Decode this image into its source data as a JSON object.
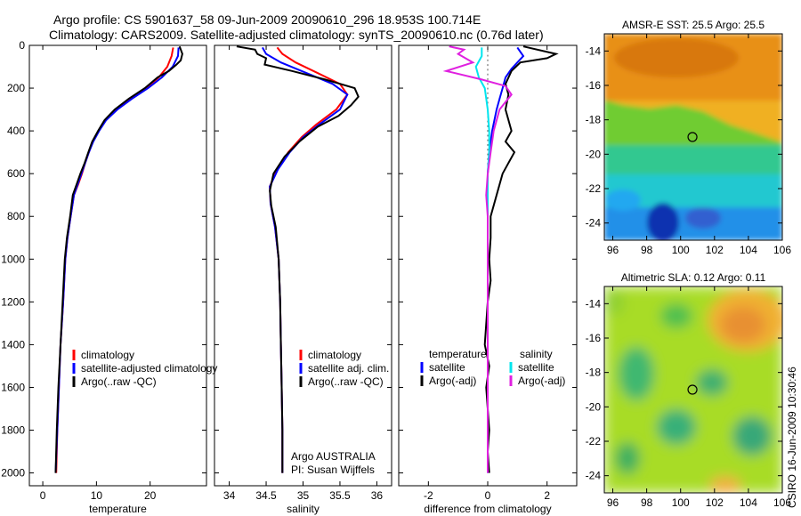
{
  "header": {
    "line1": "Argo profile: CS 5901637_58 09-Jun-2009 20090610_296 18.953S 100.714E",
    "line2": "Climatology: CARS2009. Satellite-adjusted climatology: synTS_20090610.nc (0.76d later)"
  },
  "side_stamp": "CSIRO 16-Jun-2009 10:30:46",
  "colors": {
    "climatology": "#ff0000",
    "satellite": "#0000ff",
    "argo": "#000000",
    "sal_satellite": "#00e5ee",
    "sal_argo": "#e020e0"
  },
  "chart_data": [
    {
      "type": "line",
      "name": "temperature-panel",
      "xlabel": "temperature",
      "xlim": [
        -2.5,
        30.5
      ],
      "ylim": [
        0,
        2060
      ],
      "xticks": [
        0,
        10,
        20
      ],
      "yticks": [
        0,
        200,
        400,
        600,
        800,
        1000,
        1200,
        1400,
        1600,
        1800,
        2000
      ],
      "legend": [
        "climatology",
        "satellite-adjusted climatology",
        "Argo(..raw -QC)"
      ],
      "series": [
        {
          "name": "climatology",
          "color": "#ff0000",
          "points": [
            [
              24.3,
              10
            ],
            [
              24.0,
              50
            ],
            [
              23.2,
              100
            ],
            [
              21.6,
              150
            ],
            [
              19.2,
              200
            ],
            [
              16.2,
              250
            ],
            [
              13.6,
              300
            ],
            [
              11.6,
              350
            ],
            [
              10.4,
              400
            ],
            [
              9.3,
              450
            ],
            [
              8.6,
              500
            ],
            [
              7.9,
              550
            ],
            [
              7.3,
              600
            ],
            [
              6.6,
              650
            ],
            [
              5.8,
              700
            ],
            [
              5.2,
              800
            ],
            [
              4.6,
              900
            ],
            [
              4.2,
              1000
            ],
            [
              3.8,
              1200
            ],
            [
              3.3,
              1400
            ],
            [
              3.0,
              1600
            ],
            [
              2.7,
              1800
            ],
            [
              2.5,
              2000
            ]
          ]
        },
        {
          "name": "satellite-adjusted climatology",
          "color": "#0000ff",
          "points": [
            [
              25.3,
              10
            ],
            [
              25.2,
              50
            ],
            [
              24.2,
              100
            ],
            [
              22.2,
              150
            ],
            [
              19.6,
              200
            ],
            [
              16.6,
              250
            ],
            [
              13.9,
              300
            ],
            [
              11.8,
              350
            ],
            [
              10.5,
              400
            ],
            [
              9.4,
              450
            ],
            [
              8.6,
              500
            ],
            [
              7.9,
              550
            ],
            [
              7.2,
              600
            ],
            [
              6.5,
              650
            ],
            [
              5.8,
              700
            ],
            [
              5.2,
              800
            ],
            [
              4.6,
              900
            ],
            [
              4.2,
              1000
            ],
            [
              3.8,
              1200
            ],
            [
              3.3,
              1400
            ],
            [
              3.0,
              1600
            ],
            [
              2.7,
              1800
            ],
            [
              2.4,
              2000
            ]
          ]
        },
        {
          "name": "Argo(..raw -QC)",
          "color": "#000000",
          "points": [
            [
              25.5,
              5
            ],
            [
              26.0,
              40
            ],
            [
              25.7,
              70
            ],
            [
              24.9,
              90
            ],
            [
              23.5,
              120
            ],
            [
              21.4,
              150
            ],
            [
              19.0,
              200
            ],
            [
              16.0,
              250
            ],
            [
              13.4,
              300
            ],
            [
              11.5,
              350
            ],
            [
              10.3,
              400
            ],
            [
              9.2,
              450
            ],
            [
              8.5,
              500
            ],
            [
              7.8,
              550
            ],
            [
              7.0,
              600
            ],
            [
              6.3,
              650
            ],
            [
              5.6,
              700
            ],
            [
              5.1,
              800
            ],
            [
              4.5,
              900
            ],
            [
              4.1,
              1000
            ],
            [
              3.7,
              1200
            ],
            [
              3.3,
              1400
            ],
            [
              2.9,
              1600
            ],
            [
              2.6,
              1800
            ],
            [
              2.4,
              2000
            ]
          ]
        }
      ]
    },
    {
      "type": "line",
      "name": "salinity-panel",
      "xlabel": "salinity",
      "xlim": [
        33.8,
        36.2
      ],
      "ylim": [
        0,
        2060
      ],
      "xticks": [
        34,
        34.5,
        35,
        35.5,
        36
      ],
      "legend": [
        "climatology",
        "satellite adj. clim.",
        "Argo(..raw -QC)"
      ],
      "annotations": [
        "Argo AUSTRALIA",
        "PI: Susan Wijffels"
      ],
      "series": [
        {
          "name": "climatology",
          "color": "#ff0000",
          "points": [
            [
              34.65,
              10
            ],
            [
              34.72,
              40
            ],
            [
              34.9,
              80
            ],
            [
              35.2,
              130
            ],
            [
              35.5,
              180
            ],
            [
              35.6,
              230
            ],
            [
              35.45,
              300
            ],
            [
              35.18,
              370
            ],
            [
              34.98,
              430
            ],
            [
              34.8,
              500
            ],
            [
              34.65,
              580
            ],
            [
              34.55,
              660
            ],
            [
              34.56,
              740
            ],
            [
              34.62,
              850
            ],
            [
              34.67,
              1000
            ],
            [
              34.69,
              1200
            ],
            [
              34.7,
              1400
            ],
            [
              34.71,
              1600
            ],
            [
              34.72,
              1800
            ],
            [
              34.72,
              2000
            ]
          ]
        },
        {
          "name": "satellite adj. clim.",
          "color": "#0000ff",
          "points": [
            [
              34.45,
              10
            ],
            [
              34.5,
              40
            ],
            [
              34.7,
              80
            ],
            [
              35.05,
              130
            ],
            [
              35.4,
              180
            ],
            [
              35.6,
              230
            ],
            [
              35.5,
              300
            ],
            [
              35.22,
              370
            ],
            [
              35.0,
              430
            ],
            [
              34.82,
              500
            ],
            [
              34.66,
              580
            ],
            [
              34.55,
              660
            ],
            [
              34.56,
              740
            ],
            [
              34.62,
              850
            ],
            [
              34.67,
              1000
            ],
            [
              34.69,
              1200
            ],
            [
              34.7,
              1400
            ],
            [
              34.71,
              1600
            ],
            [
              34.72,
              1800
            ],
            [
              34.72,
              2000
            ]
          ]
        },
        {
          "name": "Argo(..raw -QC)",
          "color": "#000000",
          "points": [
            [
              34.1,
              5
            ],
            [
              34.35,
              20
            ],
            [
              34.38,
              40
            ],
            [
              34.5,
              60
            ],
            [
              34.48,
              90
            ],
            [
              34.85,
              120
            ],
            [
              35.3,
              160
            ],
            [
              35.7,
              200
            ],
            [
              35.75,
              240
            ],
            [
              35.65,
              280
            ],
            [
              35.48,
              330
            ],
            [
              35.2,
              380
            ],
            [
              34.95,
              450
            ],
            [
              34.75,
              520
            ],
            [
              34.6,
              600
            ],
            [
              34.55,
              680
            ],
            [
              34.57,
              750
            ],
            [
              34.63,
              850
            ],
            [
              34.67,
              1000
            ],
            [
              34.69,
              1200
            ],
            [
              34.7,
              1400
            ],
            [
              34.71,
              1600
            ],
            [
              34.72,
              1800
            ],
            [
              34.72,
              2000
            ]
          ]
        }
      ]
    },
    {
      "type": "line",
      "name": "difference-panel",
      "xlabel": "difference from climatology",
      "xlim": [
        -3,
        3
      ],
      "ylim": [
        0,
        2060
      ],
      "xticks": [
        -2,
        0,
        2
      ],
      "legend_headers": [
        "temperature",
        "salinity"
      ],
      "legend": [
        "satellite",
        "Argo(-adj)",
        "satellite",
        "Argo(-adj)"
      ],
      "series": [
        {
          "name": "temperature satellite",
          "color": "#0000ff",
          "points": [
            [
              1.0,
              10
            ],
            [
              1.2,
              50
            ],
            [
              1.0,
              80
            ],
            [
              0.8,
              110
            ],
            [
              0.6,
              150
            ],
            [
              0.5,
              200
            ],
            [
              0.4,
              250
            ],
            [
              0.3,
              300
            ],
            [
              0.15,
              400
            ],
            [
              0.05,
              500
            ],
            [
              0,
              600
            ],
            [
              0,
              800
            ],
            [
              0,
              1000
            ],
            [
              0,
              1200
            ],
            [
              0,
              1400
            ],
            [
              0,
              1600
            ],
            [
              0,
              1800
            ],
            [
              0,
              2000
            ]
          ]
        },
        {
          "name": "temperature Argo(-adj)",
          "color": "#000000",
          "points": [
            [
              1.2,
              5
            ],
            [
              2.3,
              40
            ],
            [
              2.0,
              60
            ],
            [
              1.1,
              80
            ],
            [
              0.8,
              120
            ],
            [
              0.6,
              180
            ],
            [
              0.7,
              230
            ],
            [
              0.6,
              300
            ],
            [
              0.8,
              400
            ],
            [
              0.6,
              450
            ],
            [
              0.9,
              500
            ],
            [
              0.7,
              550
            ],
            [
              0.5,
              600
            ],
            [
              0.3,
              700
            ],
            [
              0.1,
              800
            ],
            [
              0.1,
              900
            ],
            [
              0.05,
              1000
            ],
            [
              0.1,
              1100
            ],
            [
              0.0,
              1200
            ],
            [
              -0.1,
              1400
            ],
            [
              0.05,
              1500
            ],
            [
              -0.05,
              1600
            ],
            [
              0.05,
              1800
            ],
            [
              0.0,
              1900
            ],
            [
              0.05,
              2000
            ]
          ]
        },
        {
          "name": "salinity satellite",
          "color": "#00e5ee",
          "points": [
            [
              -0.2,
              10
            ],
            [
              -0.2,
              50
            ],
            [
              -0.4,
              100
            ],
            [
              -0.3,
              150
            ],
            [
              -0.1,
              200
            ],
            [
              0.0,
              300
            ],
            [
              0.05,
              400
            ],
            [
              0.05,
              500
            ],
            [
              0.0,
              600
            ],
            [
              0.0,
              800
            ],
            [
              0.0,
              1000
            ],
            [
              0.0,
              1200
            ],
            [
              0.0,
              1400
            ],
            [
              0.0,
              1600
            ],
            [
              0.0,
              1800
            ],
            [
              0.0,
              2000
            ]
          ]
        },
        {
          "name": "salinity Argo(-adj)",
          "color": "#e020e0",
          "points": [
            [
              -1.3,
              5
            ],
            [
              -0.8,
              20
            ],
            [
              -1.0,
              40
            ],
            [
              -0.5,
              80
            ],
            [
              -1.4,
              120
            ],
            [
              -0.2,
              160
            ],
            [
              0.6,
              190
            ],
            [
              0.8,
              230
            ],
            [
              0.4,
              300
            ],
            [
              0.2,
              400
            ],
            [
              0.1,
              500
            ],
            [
              0.0,
              600
            ],
            [
              -0.05,
              700
            ],
            [
              0.0,
              800
            ],
            [
              0.0,
              1000
            ],
            [
              0.0,
              1200
            ],
            [
              0.0,
              1400
            ],
            [
              0.0,
              1600
            ],
            [
              0.0,
              1800
            ],
            [
              0.0,
              2000
            ]
          ]
        }
      ]
    },
    {
      "type": "heatmap",
      "name": "sst-map",
      "title": "AMSR-E SST: 25.5 Argo: 25.5",
      "xlim": [
        95.5,
        106
      ],
      "ylim": [
        -25,
        -13
      ],
      "xticks": [
        96,
        98,
        100,
        102,
        104,
        106
      ],
      "yticks": [
        -14,
        -16,
        -18,
        -20,
        -22,
        -24
      ],
      "marker": [
        100.7,
        -19.0
      ]
    },
    {
      "type": "heatmap",
      "name": "sla-map",
      "title": "Altimetric SLA: 0.12 Argo: 0.11",
      "xlim": [
        95.5,
        106
      ],
      "ylim": [
        -25,
        -13
      ],
      "xticks": [
        96,
        98,
        100,
        102,
        104,
        106
      ],
      "yticks": [
        -14,
        -16,
        -18,
        -20,
        -22,
        -24
      ],
      "marker": [
        100.7,
        -19.0
      ]
    }
  ]
}
